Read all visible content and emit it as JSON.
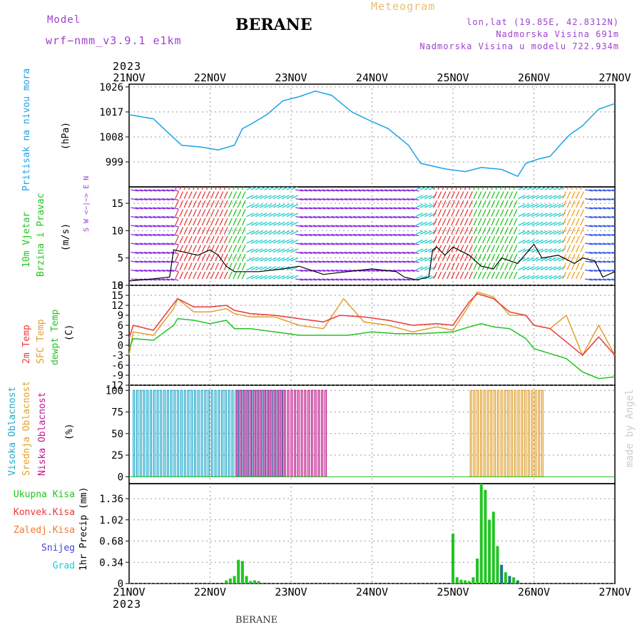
{
  "header": {
    "model_label": "Model",
    "model_name": "wrf−nmm_v3.9.1 e1km",
    "city": "BERANE",
    "meteogram_label": "Meteogram",
    "lonlat": "lon,lat (19.85E, 42.8312N)",
    "elevation": "Nadmorska Visina 691m",
    "model_elevation": "Nadmorska Visina u modelu 722.934m",
    "year": "2023",
    "footer_city": "BERANE",
    "credit": "made by Angel"
  },
  "colors": {
    "pressure": "#1aa3e8",
    "wind_speed": "#000000",
    "temp2m": "#e8393a",
    "sfc_temp": "#e0a030",
    "dewpoint": "#22c422",
    "high_cloud": "#22aacc",
    "mid_cloud": "#e0a030",
    "low_cloud": "#c0188c",
    "total_precip": "#22c422",
    "convective": "#e8393a",
    "freezing": "#f07a30",
    "snow": "#4444dd",
    "hail": "#22cccc",
    "label_purple": "#a040d0",
    "meteogram_title": "#e8c070"
  },
  "panels": {
    "pressure": {
      "label": "Pritisak na nivou mora",
      "unit": "(hPa)"
    },
    "wind": {
      "label1": "10m Vjetar",
      "label2": "Brzina i Pravac",
      "unit": "(m/s)",
      "compass": "W <−|−> E",
      "compass_s": "S",
      "compass_n": "N"
    },
    "temp": {
      "label1": "2m Temp",
      "label2": "SFC Temp",
      "label3": "dewpt Temp",
      "unit": "(C)"
    },
    "cloud": {
      "label1": "Visoka Oblacnost",
      "label2": "Srednja Oblacnost",
      "label3": "Niska Oblacnost",
      "unit": "(%)"
    },
    "precip": {
      "unit": "1hr Precip (mm)",
      "legend": [
        "Ukupna Kisa",
        "Konvek.Kisa",
        "Zaledj.Kisa",
        "Snijeg",
        "Grad"
      ]
    }
  },
  "chart_data": [
    {
      "type": "line",
      "title": "Pritisak na nivou mora",
      "x_ticks": [
        "21NOV",
        "22NOV",
        "23NOV",
        "24NOV",
        "25NOV",
        "26NOV",
        "27NOV"
      ],
      "ylabel": "(hPa)",
      "ylim": [
        990,
        1027
      ],
      "y_ticks": [
        999,
        1008,
        1017,
        1026
      ],
      "series": [
        {
          "name": "Pritisak na nivou mora",
          "x": [
            0,
            0.3,
            0.5,
            0.65,
            0.9,
            1.1,
            1.3,
            1.4,
            1.5,
            1.7,
            1.9,
            2.1,
            2.3,
            2.5,
            2.75,
            3.0,
            3.2,
            3.45,
            3.6,
            3.9,
            4.15,
            4.35,
            4.6,
            4.8,
            4.9,
            5.05,
            5.2,
            5.35,
            5.45,
            5.6,
            5.8,
            6.0
          ],
          "values": [
            1016,
            1014.5,
            1009,
            1005,
            1004.3,
            1003.3,
            1005,
            1011,
            1012.5,
            1016,
            1021,
            1022.5,
            1024.5,
            1023,
            1017,
            1013.5,
            1011,
            1005,
            998.5,
            996.5,
            995.5,
            997,
            996.3,
            993.8,
            998.5,
            1000,
            1001,
            1006,
            1009,
            1012,
            1018,
            1020
          ]
        }
      ]
    },
    {
      "type": "line",
      "title": "10m Vjetar Brzina i Pravac",
      "ylabel": "(m/s)",
      "ylim": [
        0,
        18
      ],
      "y_ticks": [
        0,
        5,
        10,
        15
      ],
      "series": [
        {
          "name": "10m Vjetar",
          "x": [
            0,
            0.3,
            0.5,
            0.55,
            0.7,
            0.85,
            1.0,
            1.1,
            1.2,
            1.3,
            1.6,
            1.9,
            2.1,
            2.4,
            2.7,
            3.0,
            3.3,
            3.4,
            3.55,
            3.7,
            3.75,
            3.8,
            3.9,
            4.0,
            4.2,
            4.35,
            4.5,
            4.6,
            4.8,
            5.0,
            5.1,
            5.3,
            5.5,
            5.6,
            5.75,
            5.85,
            6.0
          ],
          "values": [
            0.8,
            1.2,
            1.5,
            6.5,
            6.0,
            5.5,
            6.5,
            5.5,
            3.5,
            2.5,
            2.5,
            3.0,
            3.5,
            2.0,
            2.5,
            3.0,
            2.5,
            1.5,
            1.0,
            1.5,
            6.5,
            7.0,
            5.5,
            7.0,
            5.5,
            3.5,
            3.0,
            5.0,
            4.0,
            7.5,
            5.0,
            5.5,
            4.0,
            5.0,
            4.5,
            1.5,
            2.5
          ]
        }
      ]
    },
    {
      "type": "line",
      "title": "2m Temp / SFC Temp / dewpt Temp",
      "ylabel": "(C)",
      "ylim": [
        -12,
        18
      ],
      "y_ticks": [
        -12,
        -9,
        -6,
        -3,
        0,
        3,
        6,
        9,
        12,
        15,
        18
      ],
      "series": [
        {
          "name": "2m Temp",
          "x": [
            0,
            0.05,
            0.3,
            0.55,
            0.6,
            0.8,
            1.0,
            1.2,
            1.3,
            1.5,
            1.8,
            2.1,
            2.4,
            2.6,
            2.9,
            3.2,
            3.5,
            3.8,
            4.0,
            4.2,
            4.3,
            4.5,
            4.7,
            4.9,
            5.0,
            5.2,
            5.4,
            5.6,
            5.8,
            6.0
          ],
          "values": [
            2,
            6,
            4.5,
            12.5,
            14,
            11.5,
            11.5,
            12,
            10.5,
            9.5,
            9,
            8,
            7,
            9,
            8.5,
            7.5,
            6,
            6.5,
            6,
            13,
            15.5,
            14,
            10,
            9,
            6,
            5,
            1,
            -3,
            2.5,
            -3
          ]
        },
        {
          "name": "SFC Temp",
          "x": [
            0,
            0.05,
            0.3,
            0.55,
            0.6,
            0.8,
            1.0,
            1.2,
            1.3,
            1.5,
            1.8,
            2.1,
            2.4,
            2.65,
            2.9,
            3.2,
            3.5,
            3.8,
            4.0,
            4.2,
            4.3,
            4.5,
            4.7,
            4.9,
            5.0,
            5.2,
            5.4,
            5.6,
            5.8,
            6.0
          ],
          "values": [
            -3,
            4,
            3,
            11,
            14,
            10,
            10,
            11,
            9.5,
            8.5,
            8.5,
            6,
            5,
            14,
            7,
            6,
            4,
            5.5,
            4.5,
            12,
            16,
            14.5,
            9,
            9,
            6,
            5,
            9,
            -3,
            6,
            -3
          ]
        },
        {
          "name": "dewpt Temp",
          "x": [
            0,
            0.05,
            0.3,
            0.55,
            0.6,
            0.8,
            1.0,
            1.2,
            1.3,
            1.5,
            1.8,
            2.1,
            2.4,
            2.7,
            3.0,
            3.3,
            3.6,
            4.0,
            4.2,
            4.35,
            4.5,
            4.7,
            4.9,
            5.0,
            5.2,
            5.4,
            5.6,
            5.8,
            6.0
          ],
          "values": [
            -1,
            2,
            1.5,
            6,
            8,
            7.5,
            6.5,
            7.5,
            5,
            5,
            4,
            3,
            3,
            3,
            4,
            3.5,
            3.5,
            4,
            5.5,
            6.5,
            5.5,
            5,
            2,
            -1,
            -2.5,
            -4,
            -8,
            -10,
            -9.5
          ]
        }
      ]
    },
    {
      "type": "bar",
      "title": "Visoka / Srednja / Niska Oblacnost",
      "ylabel": "(%)",
      "ylim": [
        0,
        100
      ],
      "y_ticks": [
        0,
        25,
        50,
        75,
        100
      ],
      "series": [
        {
          "name": "Visoka Oblacnost",
          "x_range": [
            0.05,
            1.9
          ],
          "value": 100
        },
        {
          "name": "Srednja Oblacnost",
          "x_range": [
            4.2,
            5.1
          ],
          "value": 100
        },
        {
          "name": "Niska Oblacnost",
          "x_range": [
            1.3,
            2.4
          ],
          "value": 100
        }
      ]
    },
    {
      "type": "bar",
      "title": "1hr Precip",
      "ylabel": "1hr Precip (mm)",
      "ylim": [
        0,
        1.6
      ],
      "y_ticks": [
        0,
        0.34,
        0.68,
        1.02,
        1.36
      ],
      "series": [
        {
          "name": "Ukupna Kisa",
          "x": [
            1.2,
            1.25,
            1.3,
            1.35,
            1.4,
            1.45,
            1.5,
            1.55,
            1.6,
            4.0,
            4.05,
            4.1,
            4.15,
            4.2,
            4.25,
            4.3,
            4.35,
            4.4,
            4.45,
            4.5,
            4.55,
            4.6,
            4.65,
            4.7,
            4.75,
            4.8
          ],
          "values": [
            0.05,
            0.08,
            0.12,
            0.38,
            0.36,
            0.12,
            0.04,
            0.05,
            0.04,
            0.8,
            0.1,
            0.06,
            0.05,
            0.04,
            0.1,
            0.4,
            1.6,
            1.5,
            1.02,
            1.15,
            0.6,
            0.3,
            0.18,
            0.12,
            0.1,
            0.05
          ]
        }
      ]
    }
  ]
}
